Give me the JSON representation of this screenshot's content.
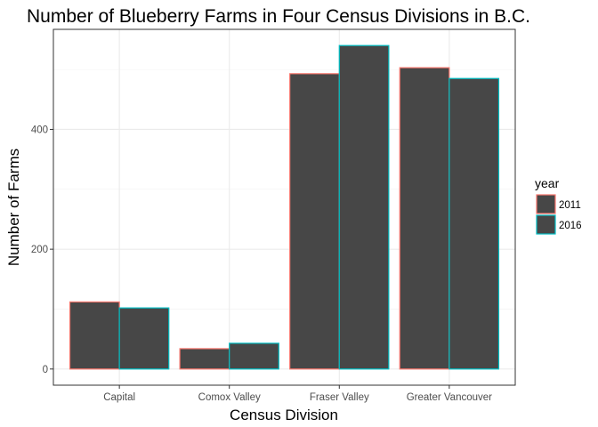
{
  "chart_data": {
    "type": "bar",
    "title": "Number of Blueberry Farms in Four Census Divisions in B.C.",
    "xlabel": "Census Division",
    "ylabel": "Number of Farms",
    "categories": [
      "Capital",
      "Comox Valley",
      "Fraser Valley",
      "Greater Vancouver"
    ],
    "series": [
      {
        "name": "2011",
        "values": [
          112,
          34,
          493,
          503
        ],
        "outline_color": "#F8766D"
      },
      {
        "name": "2016",
        "values": [
          102,
          43,
          540,
          485
        ],
        "outline_color": "#00BFC4"
      }
    ],
    "bar_fill": "#474747",
    "ylim": [
      -27,
      567
    ],
    "yticks": [
      0,
      200,
      400
    ],
    "grid": true,
    "legend": {
      "title": "year",
      "placement": "right"
    }
  }
}
